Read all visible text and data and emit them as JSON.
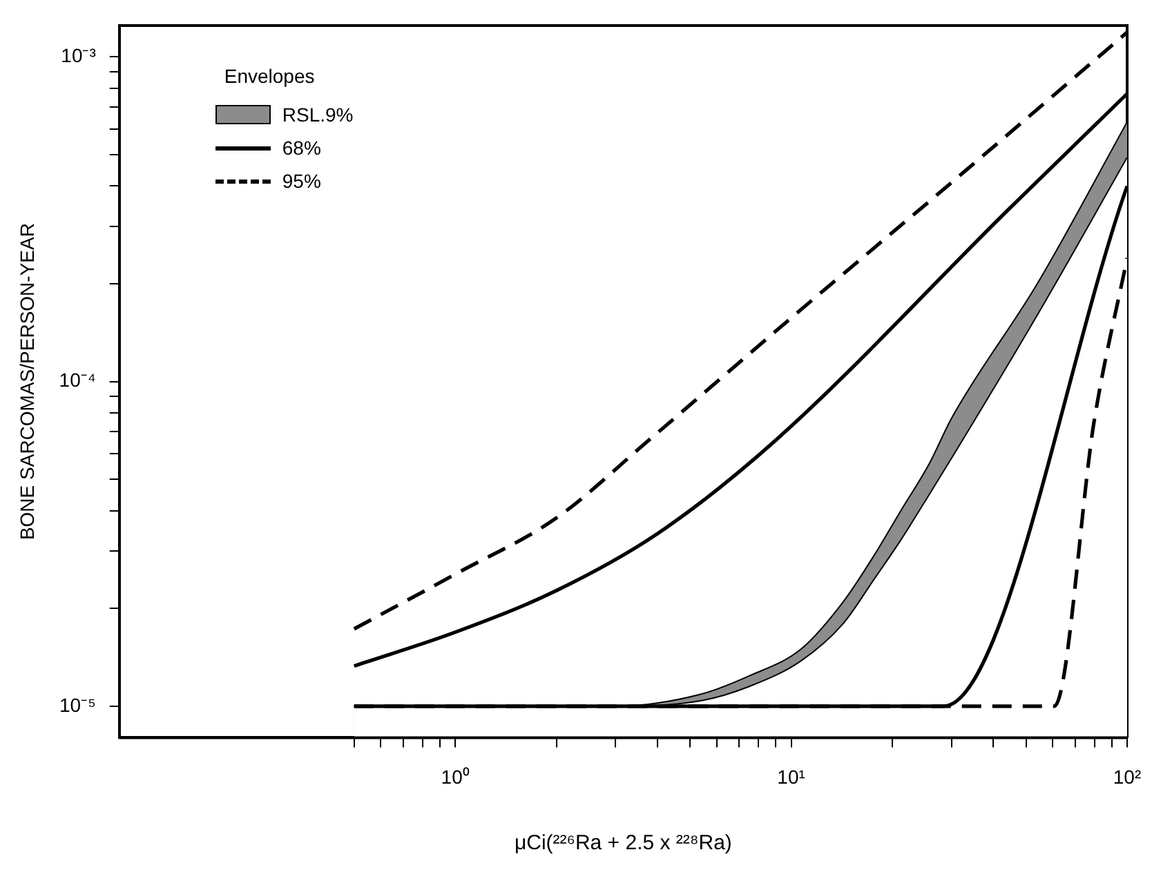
{
  "chart_data": {
    "type": "line",
    "xlabel": "μCi(²²⁶Ra + 2.5 x ²²⁸Ra)",
    "ylabel": "BONE SARCOMAS/PERSON-YEAR",
    "log": "xy",
    "marker": "none",
    "legend": "top left",
    "legend_title": "Envelopes",
    "xlim": [
      0.1,
      100
    ],
    "ylim": [
      8e-06,
      0.00125
    ],
    "xticks": [
      {
        "value": 1,
        "label": "10⁰"
      },
      {
        "value": 10,
        "label": "10¹"
      },
      {
        "value": 100,
        "label": "10²"
      },
      {
        "value": 0.5,
        "label": null
      },
      {
        "value": 0.6,
        "label": null
      },
      {
        "value": 0.7,
        "label": null
      },
      {
        "value": 0.8,
        "label": null
      },
      {
        "value": 0.9,
        "label": null
      },
      {
        "value": 2,
        "label": null
      },
      {
        "value": 3,
        "label": null
      },
      {
        "value": 4,
        "label": null
      },
      {
        "value": 5,
        "label": null
      },
      {
        "value": 6,
        "label": null
      },
      {
        "value": 7,
        "label": null
      },
      {
        "value": 8,
        "label": null
      },
      {
        "value": 9,
        "label": null
      },
      {
        "value": 20,
        "label": null
      },
      {
        "value": 30,
        "label": null
      },
      {
        "value": 40,
        "label": null
      },
      {
        "value": 50,
        "label": null
      },
      {
        "value": 60,
        "label": null
      },
      {
        "value": 70,
        "label": null
      },
      {
        "value": 80,
        "label": null
      },
      {
        "value": 90,
        "label": null
      }
    ],
    "yticks": [
      {
        "value": 1e-05,
        "label": "10⁻⁵"
      },
      {
        "value": 0.0001,
        "label": "10⁻⁴"
      },
      {
        "value": 0.001,
        "label": "10⁻³"
      },
      {
        "value": 2e-05,
        "label": null
      },
      {
        "value": 3e-05,
        "label": null
      },
      {
        "value": 4e-05,
        "label": null
      },
      {
        "value": 5e-05,
        "label": null
      },
      {
        "value": 6e-05,
        "label": null
      },
      {
        "value": 7e-05,
        "label": null
      },
      {
        "value": 8e-05,
        "label": null
      },
      {
        "value": 9e-05,
        "label": null
      },
      {
        "value": 0.0002,
        "label": null
      },
      {
        "value": 0.0003,
        "label": null
      },
      {
        "value": 0.0004,
        "label": null
      },
      {
        "value": 0.0005,
        "label": null
      },
      {
        "value": 0.0006,
        "label": null
      },
      {
        "value": 0.0007,
        "label": null
      },
      {
        "value": 0.0008,
        "label": null
      },
      {
        "value": 0.0009,
        "label": null
      }
    ],
    "series": [
      {
        "name": "RSL.9%",
        "type": "area",
        "color": "#8c8c8c",
        "x": [
          0.5,
          3,
          5.4,
          7.5,
          10.7,
          14.3,
          17.6,
          21.2,
          25.8,
          30,
          54,
          100
        ],
        "values": [
          1e-05,
          1e-05,
          1.09e-05,
          1.24e-05,
          1.5e-05,
          2.1e-05,
          2.9e-05,
          4e-05,
          5.6e-05,
          7.7e-05,
          0.0002,
          0.00063
        ]
      },
      {
        "type": "area",
        "color": "#ffffff",
        "x": [
          0.5,
          3,
          5.4,
          7.5,
          10.7,
          14.3,
          17.6,
          21.2,
          25.8,
          30,
          54,
          100
        ],
        "values": [
          1e-05,
          1e-05,
          1.04e-05,
          1.15e-05,
          1.38e-05,
          1.8e-05,
          2.45e-05,
          3.25e-05,
          4.5e-05,
          5.8e-05,
          0.00016,
          0.00049
        ]
      },
      {
        "name": "68%",
        "color": "#000000",
        "line_style": "solid",
        "x": [
          0.5,
          1,
          2,
          4,
          9,
          44.5,
          100
        ],
        "values": [
          1.33e-05,
          1.69e-05,
          2.27e-05,
          3.4e-05,
          6.6e-05,
          0.00034,
          0.00077
        ]
      },
      {
        "color": "#000000",
        "line_style": "solid",
        "x": [
          0.5,
          28.4,
          100
        ],
        "values": [
          1e-05,
          1e-05,
          0.0004
        ]
      },
      {
        "name": "95%",
        "color": "#000000",
        "line_style": "dashed",
        "x": [
          0.5,
          1,
          2,
          3.77,
          10,
          30,
          100
        ],
        "values": [
          1.73e-05,
          2.55e-05,
          3.8e-05,
          6.6e-05,
          0.000157,
          0.00041,
          0.00119
        ]
      },
      {
        "color": "#000000",
        "line_style": "dashed",
        "x": [
          0.5,
          60.7,
          80,
          100
        ],
        "values": [
          1e-05,
          1e-05,
          7.7e-05,
          0.00024
        ]
      }
    ]
  }
}
